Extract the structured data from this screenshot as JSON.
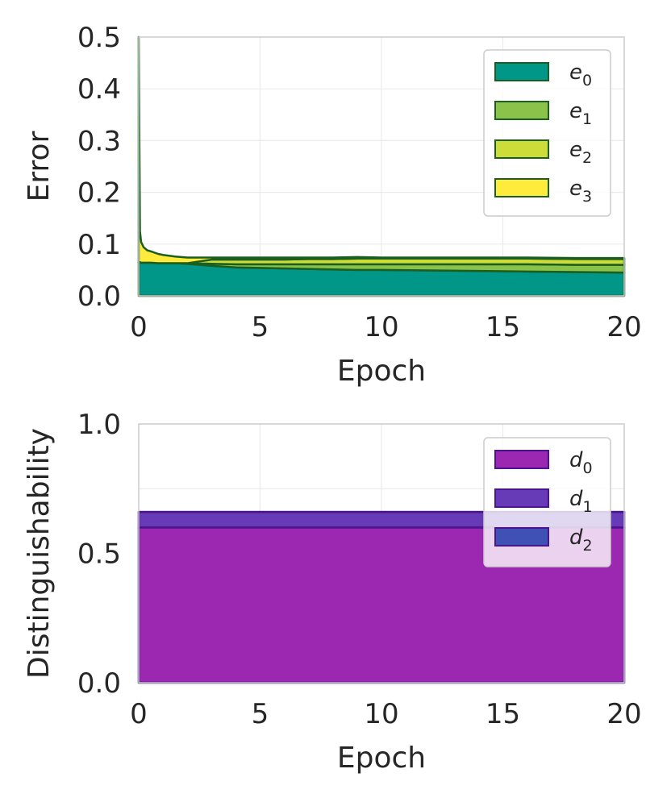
{
  "chart_data": [
    {
      "type": "area",
      "stacked": true,
      "xlabel": "Epoch",
      "ylabel": "Error",
      "xlim": [
        0,
        20
      ],
      "ylim": [
        0,
        0.5
      ],
      "xticks": [
        "0",
        "5",
        "10",
        "15",
        "20"
      ],
      "yticks": [
        "0.0",
        "0.1",
        "0.2",
        "0.3",
        "0.4",
        "0.5"
      ],
      "grid": true,
      "legend_position": "top-right",
      "x": [
        0,
        0.05,
        0.1,
        0.2,
        0.35,
        0.5,
        0.8,
        1,
        1.5,
        2,
        3,
        4,
        5,
        6,
        7,
        8,
        9,
        10,
        12,
        14,
        16,
        18,
        20
      ],
      "series": [
        {
          "name": "e",
          "sub": "0",
          "color": "#009688",
          "values": [
            0.065,
            0.065,
            0.064,
            0.064,
            0.064,
            0.064,
            0.063,
            0.063,
            0.063,
            0.062,
            0.058,
            0.055,
            0.054,
            0.053,
            0.052,
            0.051,
            0.05,
            0.05,
            0.049,
            0.048,
            0.047,
            0.046,
            0.045
          ]
        },
        {
          "name": "e",
          "sub": "1",
          "color": "#8bc34a",
          "values": [
            0.0,
            0.0,
            0.0,
            0.0,
            0.0,
            0.0,
            0.0,
            0.0,
            0.0,
            0.001,
            0.004,
            0.006,
            0.007,
            0.008,
            0.009,
            0.01,
            0.011,
            0.011,
            0.012,
            0.013,
            0.014,
            0.014,
            0.015
          ]
        },
        {
          "name": "e",
          "sub": "2",
          "color": "#cddc39",
          "values": [
            0.0,
            0.0,
            0.0,
            0.0,
            0.0,
            0.0,
            0.0,
            0.0,
            0.0,
            0.0,
            0.008,
            0.009,
            0.009,
            0.009,
            0.01,
            0.01,
            0.011,
            0.011,
            0.011,
            0.011,
            0.011,
            0.011,
            0.011
          ]
        },
        {
          "name": "e",
          "sub": "3",
          "color": "#ffeb3b",
          "values": [
            0.435,
            0.06,
            0.04,
            0.03,
            0.024,
            0.022,
            0.018,
            0.016,
            0.013,
            0.011,
            0.004,
            0.004,
            0.004,
            0.004,
            0.003,
            0.003,
            0.003,
            0.002,
            0.002,
            0.002,
            0.002,
            0.002,
            0.002
          ]
        }
      ]
    },
    {
      "type": "area",
      "stacked": true,
      "xlabel": "Epoch",
      "ylabel": "Distinguishability",
      "xlim": [
        0,
        20
      ],
      "ylim": [
        0,
        1
      ],
      "xticks": [
        "0",
        "5",
        "10",
        "15",
        "20"
      ],
      "yticks": [
        "0.0",
        "0.5",
        "1.0"
      ],
      "grid": true,
      "legend_position": "top-right",
      "x": [
        0,
        20
      ],
      "series": [
        {
          "name": "d",
          "sub": "0",
          "color": "#9c27b0",
          "values": [
            0.6,
            0.6
          ]
        },
        {
          "name": "d",
          "sub": "1",
          "color": "#673ab7",
          "values": [
            0.06,
            0.06
          ]
        },
        {
          "name": "d",
          "sub": "2",
          "color": "#3f51b5",
          "values": [
            0.0,
            0.0
          ]
        }
      ]
    }
  ]
}
